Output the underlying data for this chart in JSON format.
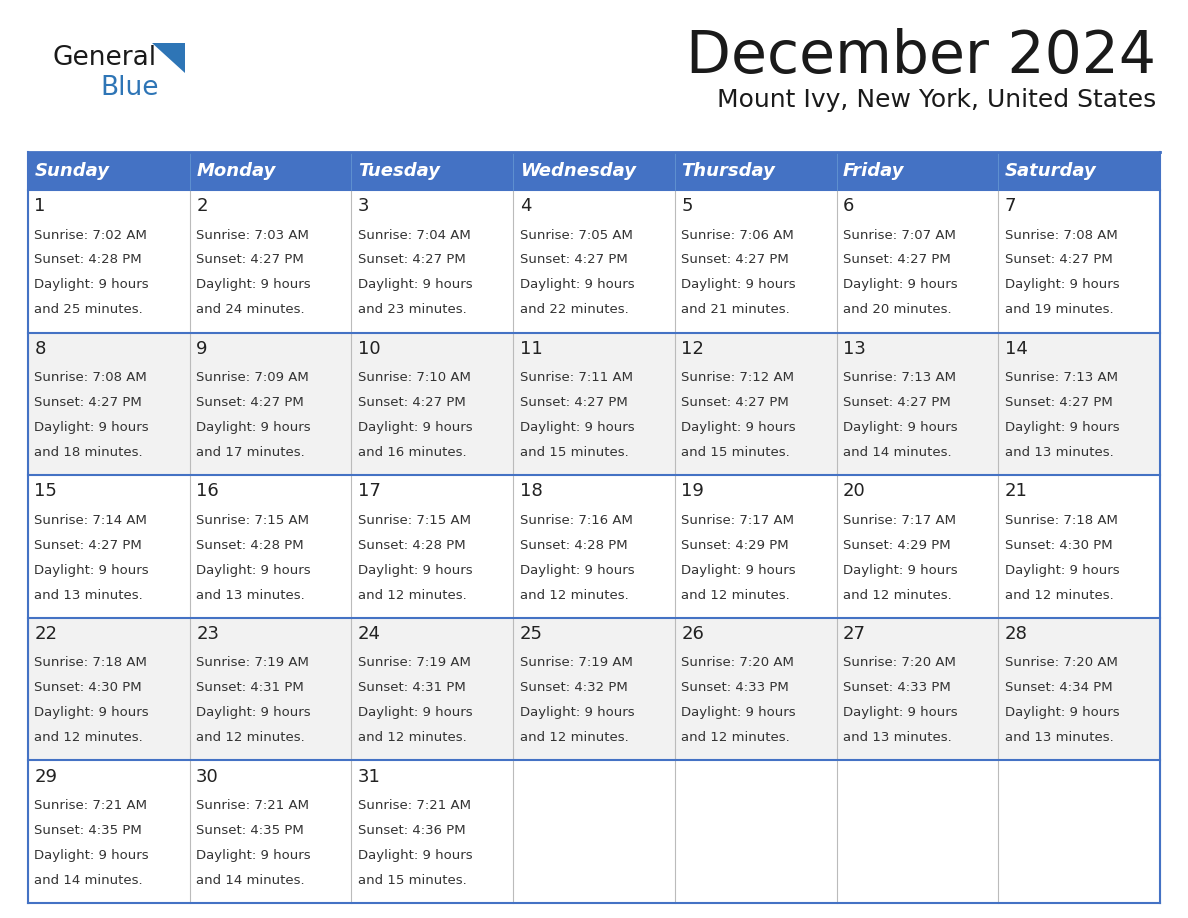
{
  "title": "December 2024",
  "subtitle": "Mount Ivy, New York, United States",
  "days_of_week": [
    "Sunday",
    "Monday",
    "Tuesday",
    "Wednesday",
    "Thursday",
    "Friday",
    "Saturday"
  ],
  "header_bg": "#4472C4",
  "header_text": "#FFFFFF",
  "border_color": "#4472C4",
  "row_bg_odd": "#FFFFFF",
  "row_bg_even": "#F2F2F2",
  "text_color": "#333333",
  "weeks": [
    [
      {
        "day": 1,
        "sunrise": "7:02 AM",
        "sunset": "4:28 PM",
        "dl1": "9 hours",
        "dl2": "and 25 minutes."
      },
      {
        "day": 2,
        "sunrise": "7:03 AM",
        "sunset": "4:27 PM",
        "dl1": "9 hours",
        "dl2": "and 24 minutes."
      },
      {
        "day": 3,
        "sunrise": "7:04 AM",
        "sunset": "4:27 PM",
        "dl1": "9 hours",
        "dl2": "and 23 minutes."
      },
      {
        "day": 4,
        "sunrise": "7:05 AM",
        "sunset": "4:27 PM",
        "dl1": "9 hours",
        "dl2": "and 22 minutes."
      },
      {
        "day": 5,
        "sunrise": "7:06 AM",
        "sunset": "4:27 PM",
        "dl1": "9 hours",
        "dl2": "and 21 minutes."
      },
      {
        "day": 6,
        "sunrise": "7:07 AM",
        "sunset": "4:27 PM",
        "dl1": "9 hours",
        "dl2": "and 20 minutes."
      },
      {
        "day": 7,
        "sunrise": "7:08 AM",
        "sunset": "4:27 PM",
        "dl1": "9 hours",
        "dl2": "and 19 minutes."
      }
    ],
    [
      {
        "day": 8,
        "sunrise": "7:08 AM",
        "sunset": "4:27 PM",
        "dl1": "9 hours",
        "dl2": "and 18 minutes."
      },
      {
        "day": 9,
        "sunrise": "7:09 AM",
        "sunset": "4:27 PM",
        "dl1": "9 hours",
        "dl2": "and 17 minutes."
      },
      {
        "day": 10,
        "sunrise": "7:10 AM",
        "sunset": "4:27 PM",
        "dl1": "9 hours",
        "dl2": "and 16 minutes."
      },
      {
        "day": 11,
        "sunrise": "7:11 AM",
        "sunset": "4:27 PM",
        "dl1": "9 hours",
        "dl2": "and 15 minutes."
      },
      {
        "day": 12,
        "sunrise": "7:12 AM",
        "sunset": "4:27 PM",
        "dl1": "9 hours",
        "dl2": "and 15 minutes."
      },
      {
        "day": 13,
        "sunrise": "7:13 AM",
        "sunset": "4:27 PM",
        "dl1": "9 hours",
        "dl2": "and 14 minutes."
      },
      {
        "day": 14,
        "sunrise": "7:13 AM",
        "sunset": "4:27 PM",
        "dl1": "9 hours",
        "dl2": "and 13 minutes."
      }
    ],
    [
      {
        "day": 15,
        "sunrise": "7:14 AM",
        "sunset": "4:27 PM",
        "dl1": "9 hours",
        "dl2": "and 13 minutes."
      },
      {
        "day": 16,
        "sunrise": "7:15 AM",
        "sunset": "4:28 PM",
        "dl1": "9 hours",
        "dl2": "and 13 minutes."
      },
      {
        "day": 17,
        "sunrise": "7:15 AM",
        "sunset": "4:28 PM",
        "dl1": "9 hours",
        "dl2": "and 12 minutes."
      },
      {
        "day": 18,
        "sunrise": "7:16 AM",
        "sunset": "4:28 PM",
        "dl1": "9 hours",
        "dl2": "and 12 minutes."
      },
      {
        "day": 19,
        "sunrise": "7:17 AM",
        "sunset": "4:29 PM",
        "dl1": "9 hours",
        "dl2": "and 12 minutes."
      },
      {
        "day": 20,
        "sunrise": "7:17 AM",
        "sunset": "4:29 PM",
        "dl1": "9 hours",
        "dl2": "and 12 minutes."
      },
      {
        "day": 21,
        "sunrise": "7:18 AM",
        "sunset": "4:30 PM",
        "dl1": "9 hours",
        "dl2": "and 12 minutes."
      }
    ],
    [
      {
        "day": 22,
        "sunrise": "7:18 AM",
        "sunset": "4:30 PM",
        "dl1": "9 hours",
        "dl2": "and 12 minutes."
      },
      {
        "day": 23,
        "sunrise": "7:19 AM",
        "sunset": "4:31 PM",
        "dl1": "9 hours",
        "dl2": "and 12 minutes."
      },
      {
        "day": 24,
        "sunrise": "7:19 AM",
        "sunset": "4:31 PM",
        "dl1": "9 hours",
        "dl2": "and 12 minutes."
      },
      {
        "day": 25,
        "sunrise": "7:19 AM",
        "sunset": "4:32 PM",
        "dl1": "9 hours",
        "dl2": "and 12 minutes."
      },
      {
        "day": 26,
        "sunrise": "7:20 AM",
        "sunset": "4:33 PM",
        "dl1": "9 hours",
        "dl2": "and 12 minutes."
      },
      {
        "day": 27,
        "sunrise": "7:20 AM",
        "sunset": "4:33 PM",
        "dl1": "9 hours",
        "dl2": "and 13 minutes."
      },
      {
        "day": 28,
        "sunrise": "7:20 AM",
        "sunset": "4:34 PM",
        "dl1": "9 hours",
        "dl2": "and 13 minutes."
      }
    ],
    [
      {
        "day": 29,
        "sunrise": "7:21 AM",
        "sunset": "4:35 PM",
        "dl1": "9 hours",
        "dl2": "and 14 minutes."
      },
      {
        "day": 30,
        "sunrise": "7:21 AM",
        "sunset": "4:35 PM",
        "dl1": "9 hours",
        "dl2": "and 14 minutes."
      },
      {
        "day": 31,
        "sunrise": "7:21 AM",
        "sunset": "4:36 PM",
        "dl1": "9 hours",
        "dl2": "and 15 minutes."
      },
      null,
      null,
      null,
      null
    ]
  ],
  "figsize": [
    11.88,
    9.18
  ],
  "dpi": 100
}
